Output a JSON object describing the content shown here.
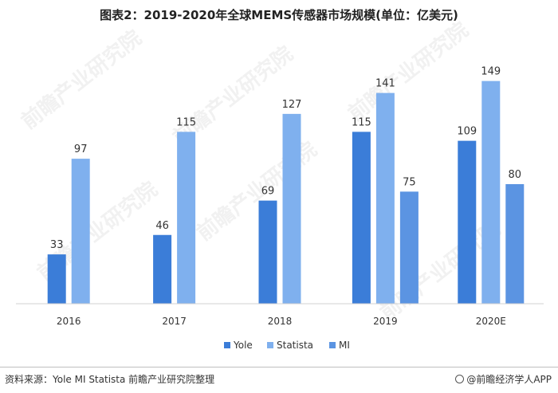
{
  "title": "图表2：2019-2020年全球MEMS传感器市场规模(单位：亿美元)",
  "watermark": "前瞻产业研究院",
  "source": "资料来源：Yole MI Statista 前瞻产业研究院整理",
  "brand": "@前瞻经济学人APP",
  "chart_data": {
    "type": "bar",
    "title": "图表2：2019-2020年全球MEMS传感器市场规模(单位：亿美元)",
    "categories": [
      "2016",
      "2017",
      "2018",
      "2019",
      "2020E"
    ],
    "series": [
      {
        "name": "Yole",
        "color": "#3b7dd8",
        "values": [
          33,
          46,
          69,
          115,
          109
        ]
      },
      {
        "name": "Statista",
        "color": "#7fb0ee",
        "values": [
          97,
          115,
          127,
          141,
          149
        ]
      },
      {
        "name": "MI",
        "color": "#5b94e2",
        "values": [
          null,
          null,
          null,
          75,
          80
        ]
      }
    ],
    "xlabel": "",
    "ylabel": "",
    "ylim": [
      0,
      160
    ],
    "grid": false,
    "legend": "bottom-center"
  }
}
